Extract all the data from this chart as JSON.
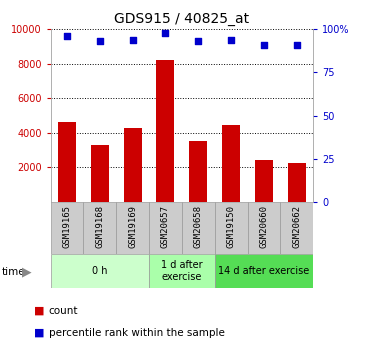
{
  "title": "GDS915 / 40825_at",
  "samples": [
    "GSM19165",
    "GSM19168",
    "GSM19169",
    "GSM20657",
    "GSM20658",
    "GSM19150",
    "GSM20660",
    "GSM20662"
  ],
  "counts": [
    4650,
    3300,
    4300,
    8250,
    3550,
    4450,
    2450,
    2250
  ],
  "percentile_ranks": [
    96,
    93,
    94,
    98,
    93,
    94,
    91,
    91
  ],
  "groups": [
    {
      "label": "0 h",
      "start": 0,
      "end": 3,
      "color": "#ccffcc"
    },
    {
      "label": "1 d after\nexercise",
      "start": 3,
      "end": 5,
      "color": "#aaffaa"
    },
    {
      "label": "14 d after exercise",
      "start": 5,
      "end": 8,
      "color": "#55dd55"
    }
  ],
  "ylim_left": [
    0,
    10000
  ],
  "ylim_right": [
    0,
    100
  ],
  "yticks_left": [
    2000,
    4000,
    6000,
    8000,
    10000
  ],
  "ytick_labels_left": [
    "2000",
    "4000",
    "6000",
    "8000",
    "10000"
  ],
  "yticks_right": [
    0,
    25,
    50,
    75,
    100
  ],
  "ytick_labels_right": [
    "0",
    "25",
    "50",
    "75",
    "100%"
  ],
  "bar_color": "#cc0000",
  "dot_color": "#0000cc",
  "grid_color": "#000000",
  "bg_color": "#ffffff",
  "tick_area_color": "#cccccc",
  "legend_bar_label": "count",
  "legend_dot_label": "percentile rank within the sample",
  "left_tick_color": "#cc0000",
  "right_tick_color": "#0000cc",
  "figsize": [
    3.75,
    3.45
  ],
  "dpi": 100
}
